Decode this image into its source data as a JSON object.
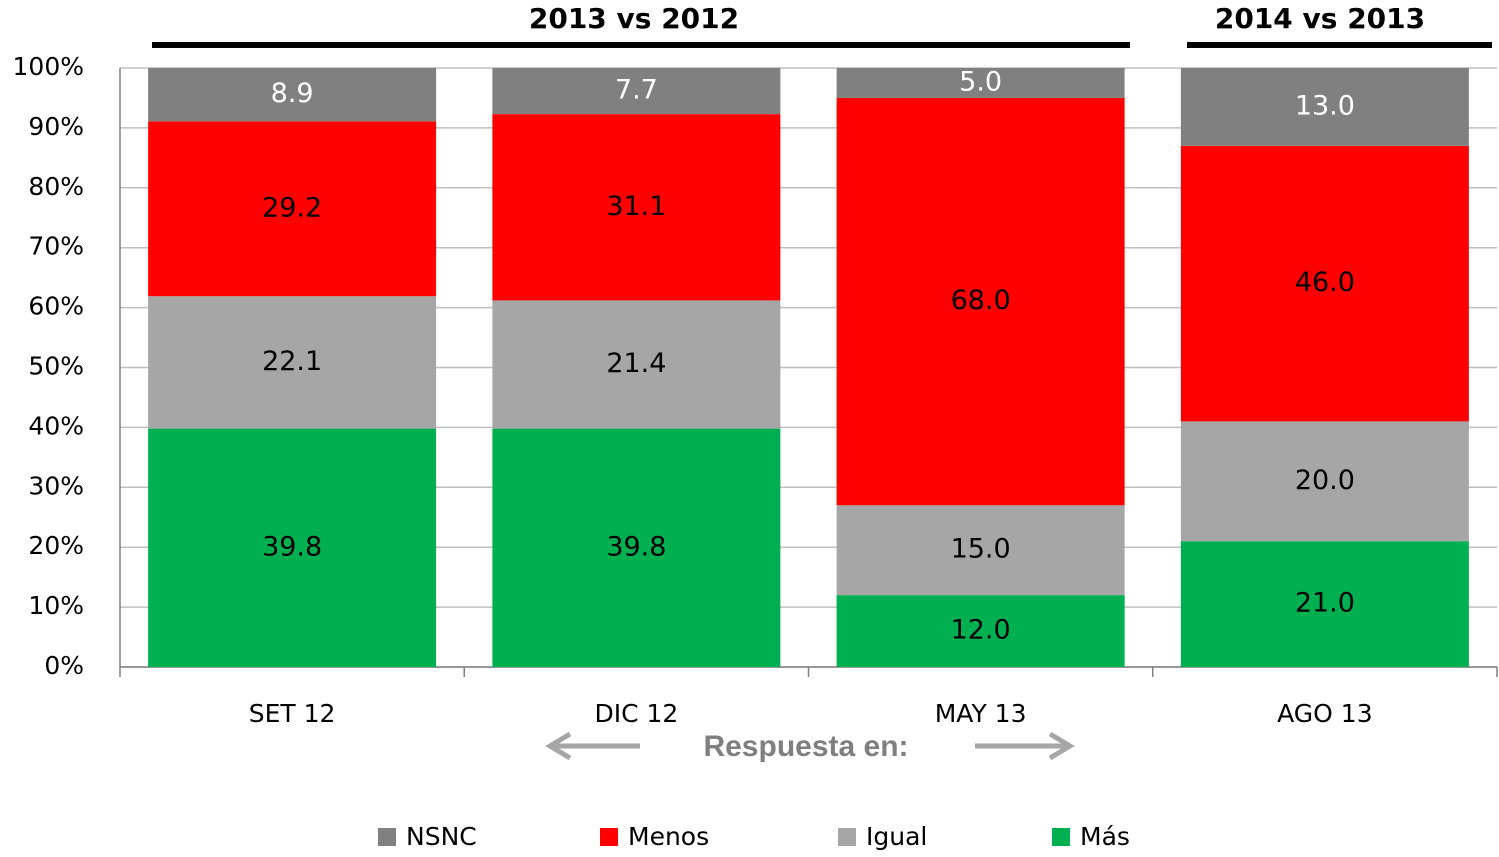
{
  "chart_data": {
    "type": "stacked_bar",
    "annotations": [
      "2013 vs 2012",
      "2014 vs 2013",
      "Respuesta en:"
    ],
    "categories": [
      "SET 12",
      "DIC 12",
      "MAY 13",
      "AGO 13"
    ],
    "series": [
      {
        "name": "Más",
        "color": "#00b050",
        "values": [
          39.8,
          39.8,
          12.0,
          21.0
        ],
        "value_labels": [
          "39.8",
          "39.8",
          "12.0",
          "21.0"
        ]
      },
      {
        "name": "Igual",
        "color": "#a6a6a6",
        "values": [
          22.1,
          21.4,
          15.0,
          20.0
        ],
        "value_labels": [
          "22.1",
          "21.4",
          "15.0",
          "20.0"
        ]
      },
      {
        "name": "Menos",
        "color": "#ff0000",
        "values": [
          29.2,
          31.1,
          68.0,
          46.0
        ],
        "value_labels": [
          "29.2",
          "31.1",
          "68.0",
          "46.0"
        ]
      },
      {
        "name": "NSNC",
        "color": "#808080",
        "values": [
          8.9,
          7.7,
          5.0,
          13.0
        ],
        "value_labels": [
          "8.9",
          "7.7",
          "5.0",
          "13.0"
        ]
      }
    ],
    "ylim": [
      0,
      100
    ],
    "yticks": [
      {
        "value": 0,
        "label": "0%"
      },
      {
        "value": 10,
        "label": "10%"
      },
      {
        "value": 20,
        "label": "20%"
      },
      {
        "value": 30,
        "label": "30%"
      },
      {
        "value": 40,
        "label": "40%"
      },
      {
        "value": 50,
        "label": "50%"
      },
      {
        "value": 60,
        "label": "60%"
      },
      {
        "value": 70,
        "label": "70%"
      },
      {
        "value": 80,
        "label": "80%"
      },
      {
        "value": 90,
        "label": "90%"
      },
      {
        "value": 100,
        "label": "100%"
      }
    ],
    "grid": true,
    "legend": "bottom"
  }
}
